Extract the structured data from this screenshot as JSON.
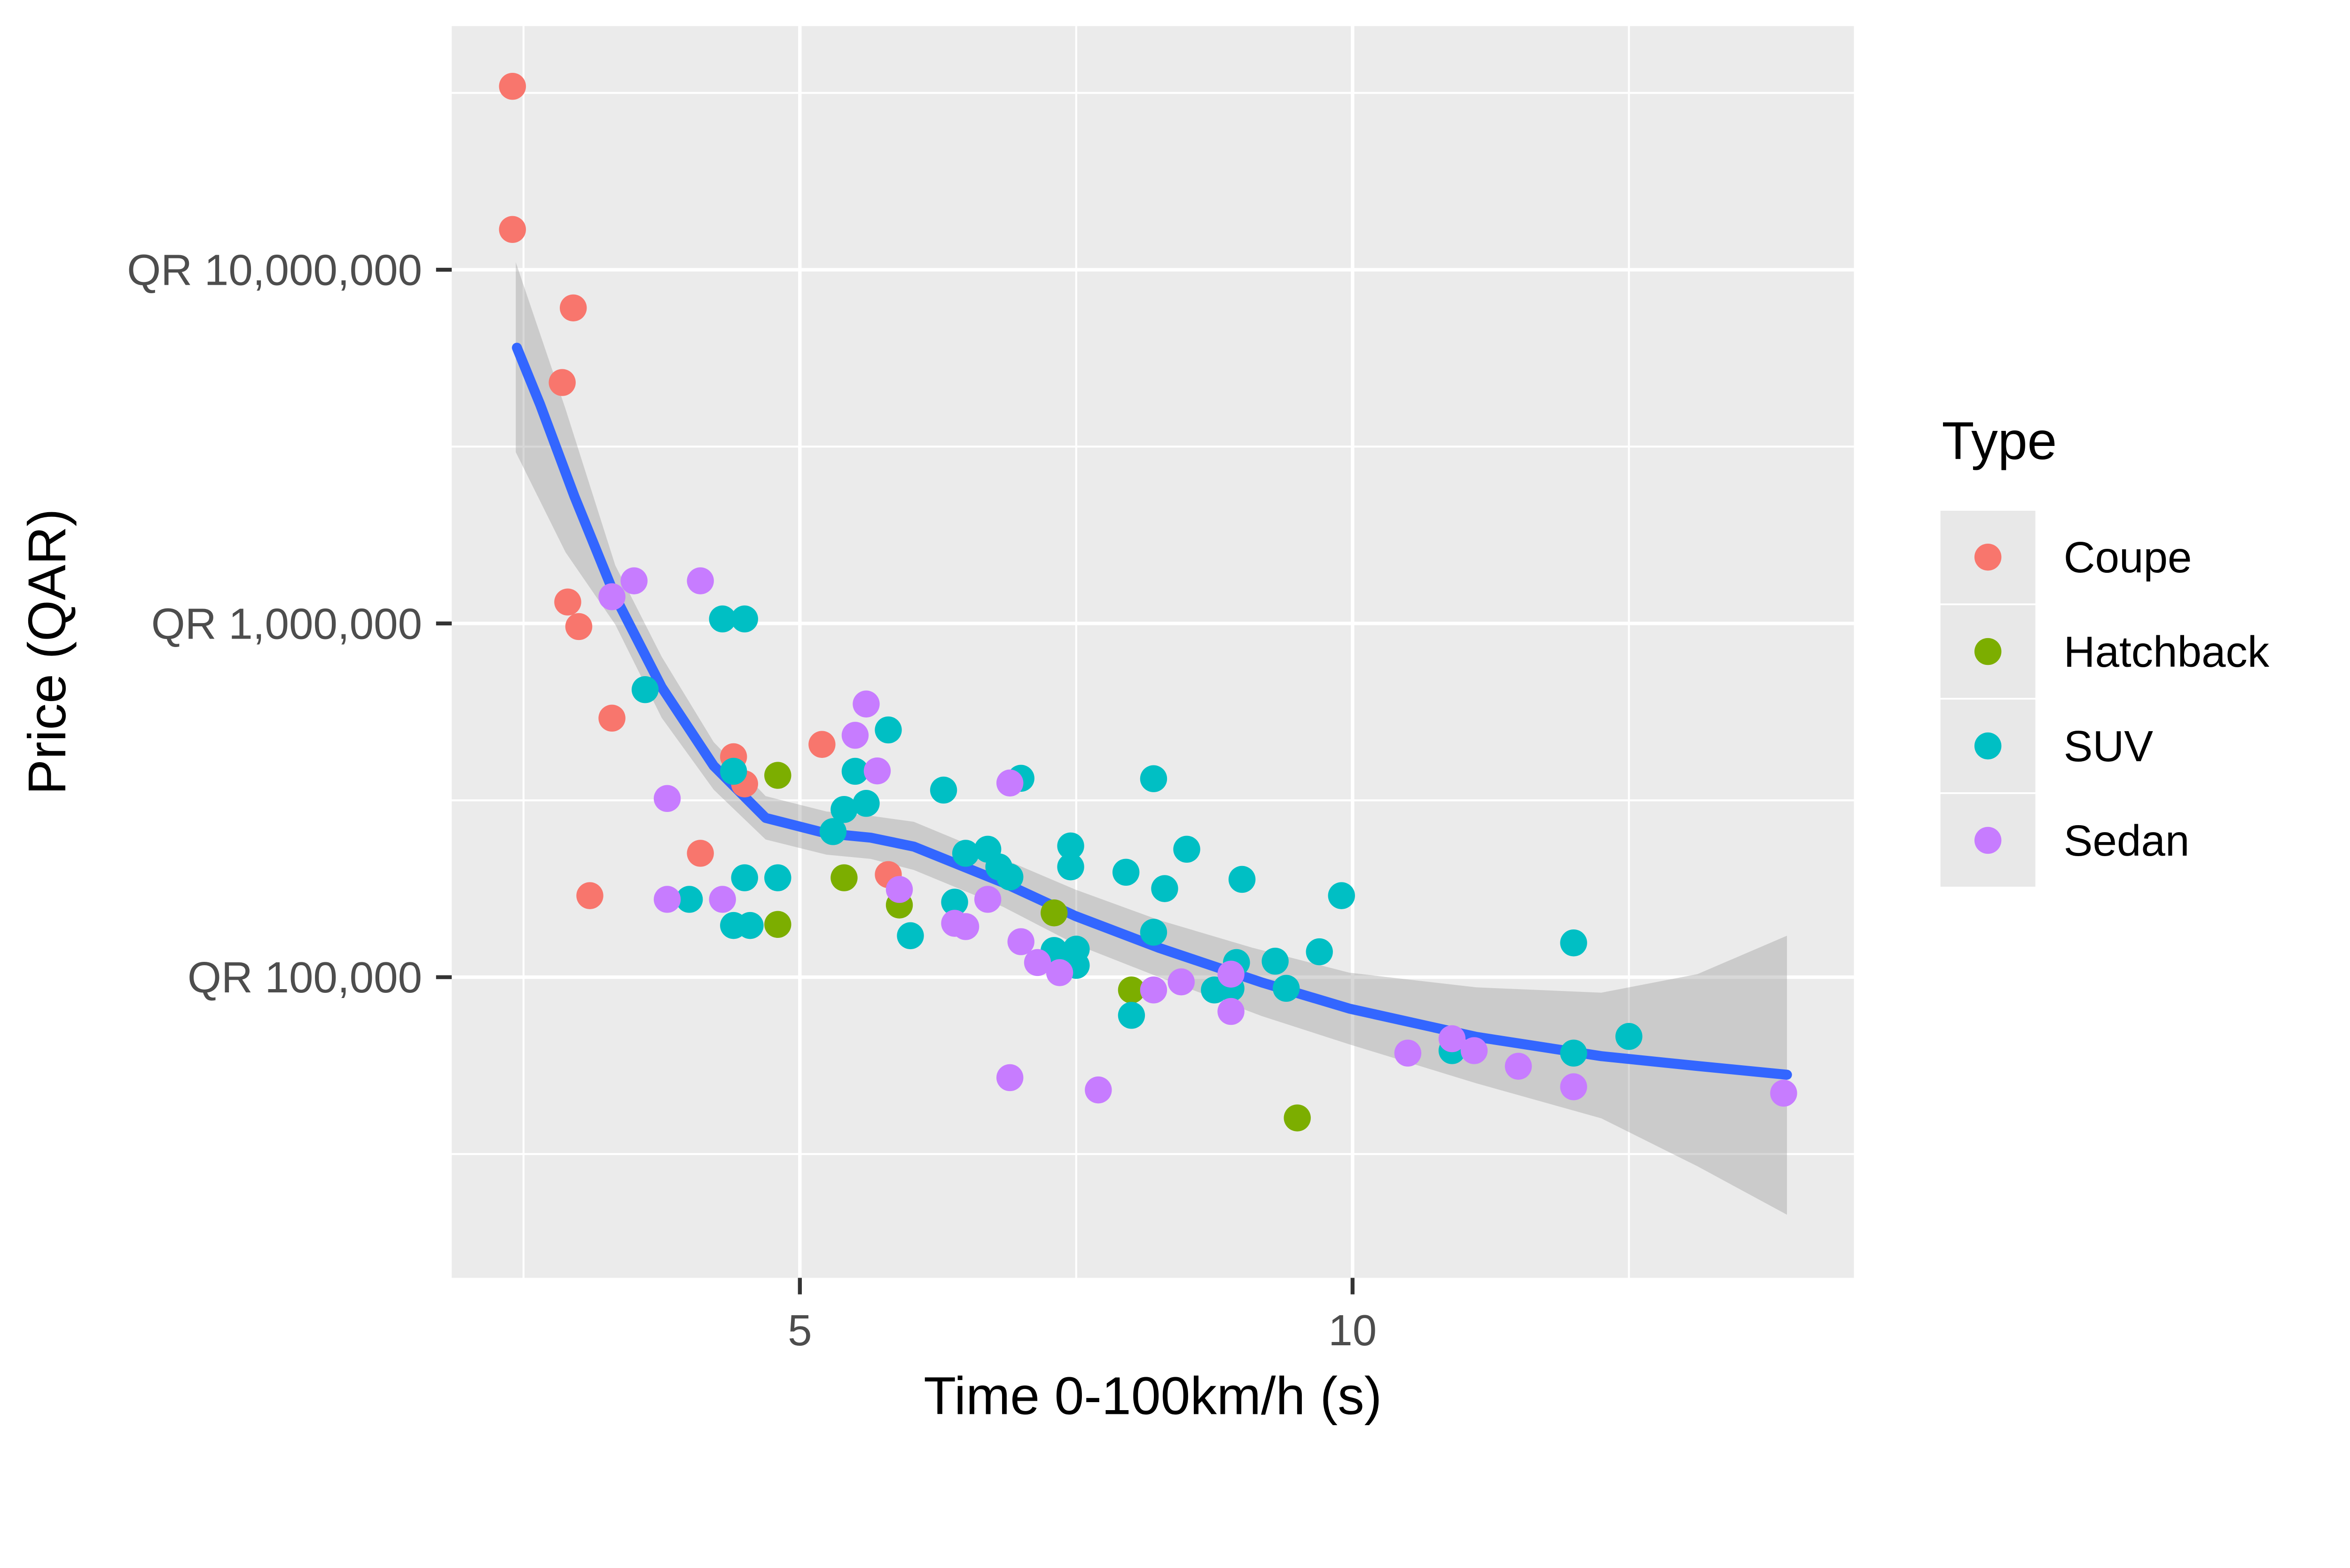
{
  "chart_data": {
    "type": "scatter",
    "title": "",
    "xlabel": "Time 0-100km/h (s)",
    "ylabel": "Price (QAR)",
    "x_axis": {
      "ticks": [
        {
          "value": 5,
          "label": "5"
        },
        {
          "value": 10,
          "label": "10"
        }
      ],
      "minor_breaks": [
        2.5,
        7.5,
        12.5
      ],
      "range": [
        1.85,
        14.55
      ]
    },
    "y_axis": {
      "scale": "log10",
      "ticks": [
        {
          "value": 10000000,
          "label": "QR 10,000,000"
        },
        {
          "value": 1000000,
          "label": "QR 1,000,000"
        },
        {
          "value": 100000,
          "label": "QR 100,000"
        }
      ],
      "minor_breaks": [
        31622777,
        3162278,
        316228,
        31623
      ],
      "range": [
        14000,
        49000000
      ]
    },
    "legend": {
      "title": "Type",
      "position": "right",
      "entries": [
        {
          "label": "Coupe",
          "color": "#F8766D"
        },
        {
          "label": "Hatchback",
          "color": "#7CAE00"
        },
        {
          "label": "SUV",
          "color": "#00BFC4"
        },
        {
          "label": "Sedan",
          "color": "#C77CFF"
        }
      ]
    },
    "series": [
      {
        "name": "Coupe",
        "color": "#F8766D",
        "points": [
          [
            2.4,
            33000000
          ],
          [
            2.4,
            13000000
          ],
          [
            2.95,
            7800000
          ],
          [
            2.85,
            4800000
          ],
          [
            2.9,
            1150000
          ],
          [
            3.0,
            980000
          ],
          [
            3.3,
            540000
          ],
          [
            5.2,
            455000
          ],
          [
            4.4,
            420000
          ],
          [
            4.5,
            352000
          ],
          [
            4.1,
            224000
          ],
          [
            5.8,
            195000
          ],
          [
            3.1,
            170000
          ]
        ]
      },
      {
        "name": "Hatchback",
        "color": "#7CAE00",
        "points": [
          [
            4.8,
            372000
          ],
          [
            5.4,
            191000
          ],
          [
            5.9,
            160000
          ],
          [
            7.3,
            152000
          ],
          [
            4.8,
            141000
          ],
          [
            8.0,
            92000
          ],
          [
            9.5,
            40000
          ]
        ]
      },
      {
        "name": "SUV",
        "color": "#00BFC4",
        "points": [
          [
            4.3,
            1030000
          ],
          [
            4.5,
            1030000
          ],
          [
            3.6,
            650000
          ],
          [
            5.8,
            500000
          ],
          [
            4.4,
            382000
          ],
          [
            5.5,
            382000
          ],
          [
            7.0,
            365000
          ],
          [
            8.2,
            364000
          ],
          [
            6.3,
            338000
          ],
          [
            5.6,
            310000
          ],
          [
            5.4,
            298000
          ],
          [
            5.3,
            258000
          ],
          [
            7.45,
            235000
          ],
          [
            6.7,
            230000
          ],
          [
            8.5,
            230000
          ],
          [
            6.5,
            224000
          ],
          [
            6.8,
            205000
          ],
          [
            7.45,
            205000
          ],
          [
            7.95,
            198000
          ],
          [
            6.9,
            192000
          ],
          [
            4.5,
            191000
          ],
          [
            4.8,
            191000
          ],
          [
            9.0,
            189000
          ],
          [
            8.3,
            178000
          ],
          [
            9.9,
            170000
          ],
          [
            4.0,
            166000
          ],
          [
            6.4,
            163000
          ],
          [
            4.4,
            140000
          ],
          [
            4.55,
            140000
          ],
          [
            8.2,
            134000
          ],
          [
            6.0,
            131000
          ],
          [
            12.0,
            125000
          ],
          [
            7.5,
            120000
          ],
          [
            7.3,
            119000
          ],
          [
            9.7,
            118000
          ],
          [
            9.3,
            111000
          ],
          [
            8.95,
            110000
          ],
          [
            7.5,
            108000
          ],
          [
            9.4,
            93000
          ],
          [
            8.9,
            93000
          ],
          [
            8.75,
            92000
          ],
          [
            8.0,
            78000
          ],
          [
            12.5,
            68000
          ],
          [
            10.9,
            62000
          ],
          [
            12.0,
            61000
          ]
        ]
      },
      {
        "name": "Sedan",
        "color": "#C77CFF",
        "points": [
          [
            3.5,
            1320000
          ],
          [
            4.1,
            1320000
          ],
          [
            3.3,
            1190000
          ],
          [
            5.6,
            592000
          ],
          [
            5.5,
            483000
          ],
          [
            5.7,
            383000
          ],
          [
            6.9,
            354000
          ],
          [
            3.8,
            320000
          ],
          [
            5.9,
            177000
          ],
          [
            6.7,
            166000
          ],
          [
            3.8,
            166000
          ],
          [
            4.3,
            166000
          ],
          [
            6.4,
            142000
          ],
          [
            6.5,
            139000
          ],
          [
            7.0,
            126000
          ],
          [
            7.15,
            110000
          ],
          [
            7.35,
            103000
          ],
          [
            8.9,
            102000
          ],
          [
            8.45,
            97000
          ],
          [
            8.2,
            92000
          ],
          [
            8.9,
            80000
          ],
          [
            10.9,
            67000
          ],
          [
            11.1,
            62000
          ],
          [
            10.5,
            61000
          ],
          [
            11.5,
            56000
          ],
          [
            6.9,
            52000
          ],
          [
            12.0,
            49000
          ],
          [
            7.7,
            48000
          ],
          [
            13.9,
            47000
          ]
        ]
      }
    ],
    "smooth": {
      "method": "loess",
      "line_color": "#3366FF",
      "ribbon_color": "#999999",
      "line": [
        [
          2.44,
          6020000
        ],
        [
          2.65,
          4160000
        ],
        [
          2.96,
          2290000
        ],
        [
          3.33,
          1190000
        ],
        [
          3.75,
          660000
        ],
        [
          4.22,
          396000
        ],
        [
          4.69,
          282000
        ],
        [
          5.24,
          255000
        ],
        [
          5.64,
          248000
        ],
        [
          6.03,
          234000
        ],
        [
          6.84,
          185000
        ],
        [
          7.49,
          149000
        ],
        [
          8.25,
          121000
        ],
        [
          9.18,
          96600
        ],
        [
          9.97,
          81500
        ],
        [
          11.12,
          67800
        ],
        [
          12.25,
          59800
        ],
        [
          13.12,
          56100
        ],
        [
          13.93,
          53000
        ]
      ],
      "ribbon_upper": [
        [
          2.43,
          10500000
        ],
        [
          2.88,
          4040000
        ],
        [
          3.33,
          1460000
        ],
        [
          3.75,
          805000
        ],
        [
          4.22,
          462000
        ],
        [
          4.69,
          325000
        ],
        [
          5.24,
          294000
        ],
        [
          5.64,
          286000
        ],
        [
          6.03,
          275000
        ],
        [
          6.84,
          216000
        ],
        [
          7.49,
          177000
        ],
        [
          8.25,
          145000
        ],
        [
          9.1,
          121000
        ],
        [
          9.97,
          103000
        ],
        [
          11.12,
          93600
        ],
        [
          12.25,
          90400
        ],
        [
          13.12,
          102000
        ],
        [
          13.93,
          131000
        ]
      ],
      "ribbon_lower": [
        [
          2.43,
          3050000
        ],
        [
          2.88,
          1590000
        ],
        [
          3.33,
          993000
        ],
        [
          3.75,
          541000
        ],
        [
          4.22,
          339000
        ],
        [
          4.69,
          245000
        ],
        [
          5.24,
          222000
        ],
        [
          5.64,
          216000
        ],
        [
          6.03,
          201000
        ],
        [
          6.84,
          158000
        ],
        [
          7.49,
          124000
        ],
        [
          8.25,
          100000
        ],
        [
          9.18,
          77600
        ],
        [
          9.97,
          64600
        ],
        [
          11.12,
          50100
        ],
        [
          12.25,
          39900
        ],
        [
          13.12,
          29200
        ],
        [
          13.93,
          21300
        ]
      ]
    },
    "style": {
      "panel_fill": "#EBEBEB",
      "grid_color": "#FFFFFF",
      "legend_key_fill": "#E8E8E8",
      "tick_color": "#333333",
      "tick_label_color": "#4D4D4D",
      "point_radius": 31
    }
  }
}
